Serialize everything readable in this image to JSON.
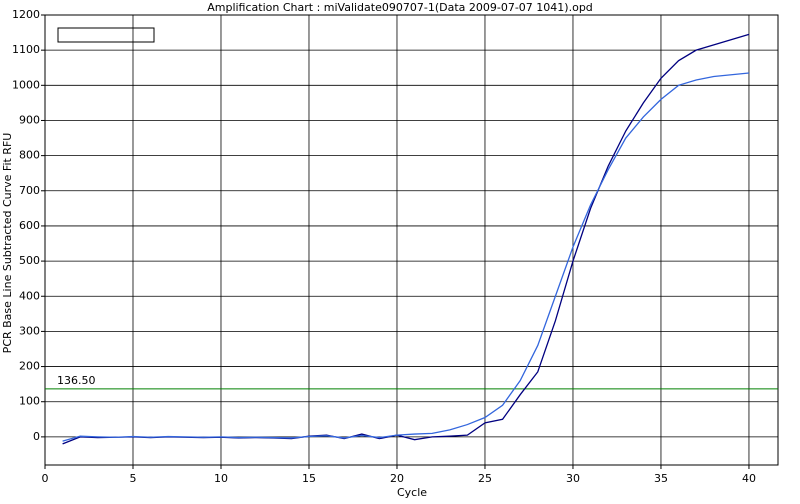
{
  "chart_data": {
    "type": "line",
    "title": "Amplification Chart : miValidate090707-1(Data 2009-07-07 1041).opd",
    "x_label": "Cycle",
    "y_label": "PCR Base Line Subtracted Curve Fit RFU",
    "x": [
      1,
      2,
      3,
      4,
      5,
      6,
      7,
      8,
      9,
      10,
      11,
      12,
      13,
      14,
      15,
      16,
      17,
      18,
      19,
      20,
      21,
      22,
      23,
      24,
      25,
      26,
      27,
      28,
      29,
      30,
      31,
      32,
      33,
      34,
      35,
      36,
      37,
      38,
      39,
      40
    ],
    "series": [
      {
        "color": "#000080",
        "values": [
          -20,
          0,
          -2,
          -1,
          0,
          -2,
          0,
          -1,
          -2,
          -1,
          -3,
          -2,
          -3,
          -5,
          2,
          5,
          -5,
          8,
          -5,
          5,
          -8,
          0,
          2,
          5,
          40,
          50,
          120,
          185,
          330,
          500,
          650,
          770,
          870,
          950,
          1020,
          1070,
          1100,
          1115,
          1130,
          1145
        ]
      },
      {
        "color": "#3366dd",
        "values": [
          -12,
          2,
          0,
          -1,
          1,
          -1,
          1,
          0,
          -1,
          0,
          -2,
          -1,
          -2,
          -3,
          1,
          3,
          -3,
          4,
          -2,
          5,
          8,
          10,
          20,
          35,
          55,
          90,
          160,
          260,
          400,
          540,
          660,
          760,
          850,
          910,
          960,
          1000,
          1015,
          1025,
          1030,
          1035
        ]
      }
    ],
    "threshold": {
      "value": 136.5,
      "label": "136.50",
      "color": "#008000"
    },
    "xlim": [
      0,
      41.65
    ],
    "xticks": [
      0,
      5,
      10,
      15,
      20,
      25,
      30,
      35,
      40
    ],
    "ylim": [
      -80,
      1200
    ],
    "yticks": [
      0,
      100,
      200,
      300,
      400,
      500,
      600,
      700,
      800,
      900,
      1000,
      1100,
      1200
    ],
    "grid": true
  }
}
